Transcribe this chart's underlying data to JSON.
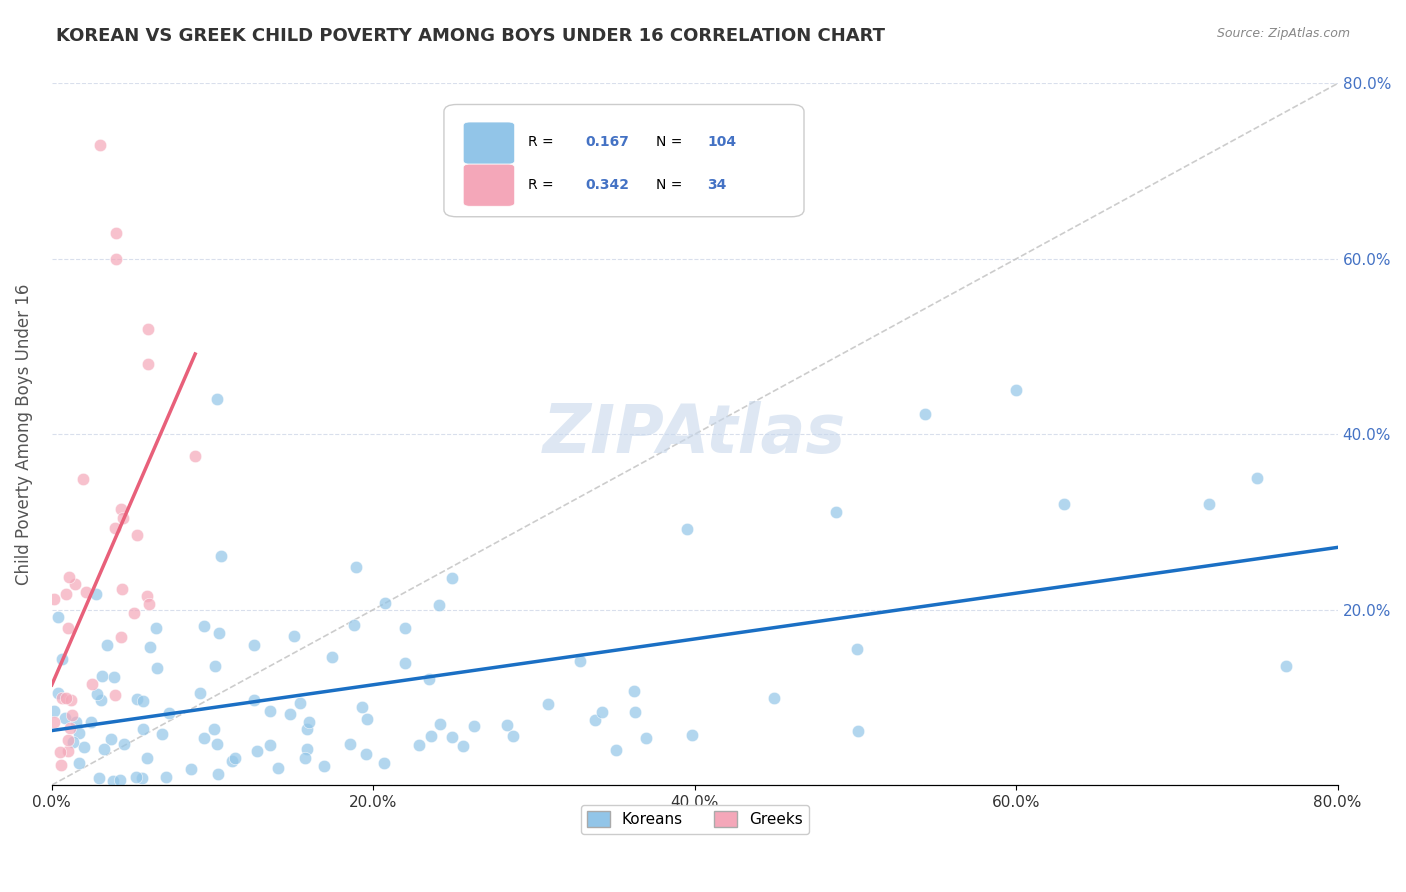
{
  "title": "KOREAN VS GREEK CHILD POVERTY AMONG BOYS UNDER 16 CORRELATION CHART",
  "source": "Source: ZipAtlas.com",
  "ylabel": "Child Poverty Among Boys Under 16",
  "xlim": [
    0.0,
    0.8
  ],
  "ylim": [
    0.0,
    0.8
  ],
  "xticks": [
    0.0,
    0.2,
    0.4,
    0.6,
    0.8
  ],
  "yticks": [
    0.0,
    0.2,
    0.4,
    0.6,
    0.8
  ],
  "xticklabels": [
    "0.0%",
    "20.0%",
    "40.0%",
    "60.0%",
    "80.0%"
  ],
  "yticklabels_right": [
    "",
    "20.0%",
    "40.0%",
    "60.0%",
    "80.0%"
  ],
  "korean_R": 0.167,
  "korean_N": 104,
  "greek_R": 0.342,
  "greek_N": 34,
  "korean_color": "#92C5E8",
  "greek_color": "#F4A7B9",
  "korean_line_color": "#1A6FC4",
  "greek_line_color": "#E8607A",
  "diagonal_color": "#C0C0C0",
  "background_color": "#FFFFFF",
  "grid_color": "#D0D8E8",
  "watermark_color": "#C8D8EC",
  "title_color": "#333333",
  "axis_label_color": "#555555",
  "tick_label_color_right": "#4472C4",
  "legend_R_N_color": "#4472C4",
  "marker_size": 80,
  "marker_alpha": 0.7,
  "marker_edge_width": 0.5
}
